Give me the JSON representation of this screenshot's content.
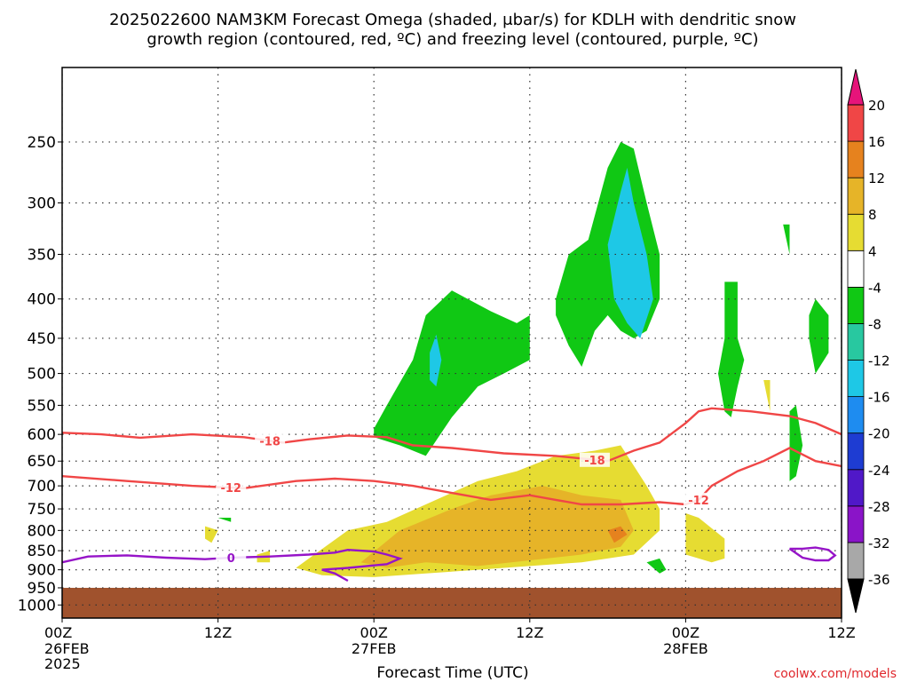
{
  "title": {
    "line1": "2025022600 NAM3KM Forecast Omega (shaded, μbar/s) for KDLH with dendritic snow",
    "line2": "growth region (contoured, red, ºC) and freezing level (contoured, purple, ºC)"
  },
  "credit": "coolwx.com/models",
  "chart_data": {
    "type": "contour-time-height",
    "xlabel": "Forecast Time (UTC)",
    "x_range_hours": [
      0,
      60
    ],
    "x_ticks": [
      {
        "hour": 0,
        "label": "00Z",
        "sub1": "26FEB",
        "sub2": "2025"
      },
      {
        "hour": 12,
        "label": "12Z",
        "sub1": "",
        "sub2": ""
      },
      {
        "hour": 24,
        "label": "00Z",
        "sub1": "27FEB",
        "sub2": ""
      },
      {
        "hour": 36,
        "label": "12Z",
        "sub1": "",
        "sub2": ""
      },
      {
        "hour": 48,
        "label": "00Z",
        "sub1": "28FEB",
        "sub2": ""
      },
      {
        "hour": 60,
        "label": "12Z",
        "sub1": "",
        "sub2": ""
      }
    ],
    "y_scale": "log-pressure",
    "y_range_hpa": [
      1000,
      200
    ],
    "y_ticks": [
      250,
      300,
      350,
      400,
      450,
      500,
      550,
      600,
      650,
      700,
      750,
      800,
      850,
      900,
      950,
      1000
    ],
    "grid": true,
    "terrain_surface_hpa": 950,
    "colorbar": {
      "levels": [
        -36,
        -32,
        -28,
        -24,
        -20,
        -16,
        -12,
        -8,
        -4,
        4,
        8,
        12,
        16,
        20
      ],
      "colors": [
        "#a8a8a8",
        "#8a14c8",
        "#5018c8",
        "#1e3cd2",
        "#1e8cf0",
        "#1ec8e6",
        "#28c8a0",
        "#10c814",
        "#ffffff",
        "#e6dc32",
        "#e6b428",
        "#e6821e",
        "#f04646",
        "#e6147a"
      ],
      "under_color": "#000000",
      "over_color": "#e6147a"
    },
    "isotherms": [
      {
        "value": -18,
        "label": "-18",
        "color": "#f04646",
        "points": [
          [
            0,
            597
          ],
          [
            3,
            600
          ],
          [
            6,
            606
          ],
          [
            10,
            600
          ],
          [
            14,
            605
          ],
          [
            17,
            615
          ],
          [
            19,
            609
          ],
          [
            22,
            602
          ],
          [
            25,
            605
          ],
          [
            27,
            620
          ],
          [
            30,
            625
          ],
          [
            34,
            635
          ],
          [
            38,
            640
          ],
          [
            40,
            645
          ],
          [
            42,
            650
          ],
          [
            44,
            630
          ],
          [
            46,
            615
          ],
          [
            48,
            580
          ],
          [
            49,
            560
          ],
          [
            50,
            555
          ],
          [
            53,
            560
          ],
          [
            56,
            568
          ],
          [
            58,
            580
          ],
          [
            60,
            600
          ]
        ],
        "label_hours": [
          16,
          41
        ]
      },
      {
        "value": -12,
        "label": "-12",
        "color": "#f04646",
        "points": [
          [
            0,
            680
          ],
          [
            5,
            690
          ],
          [
            10,
            700
          ],
          [
            14,
            705
          ],
          [
            18,
            690
          ],
          [
            21,
            685
          ],
          [
            24,
            690
          ],
          [
            27,
            700
          ],
          [
            30,
            715
          ],
          [
            33,
            730
          ],
          [
            36,
            720
          ],
          [
            38,
            730
          ],
          [
            40,
            740
          ],
          [
            43,
            740
          ],
          [
            46,
            735
          ],
          [
            48,
            740
          ],
          [
            49,
            730
          ],
          [
            50,
            700
          ],
          [
            52,
            670
          ],
          [
            54,
            650
          ],
          [
            56,
            625
          ],
          [
            58,
            650
          ],
          [
            60,
            660
          ]
        ],
        "label_hours": [
          13,
          49
        ]
      },
      {
        "value": 0,
        "label": "0",
        "color": "#9614c8",
        "points": [
          [
            0,
            880
          ],
          [
            2,
            865
          ],
          [
            5,
            862
          ],
          [
            8,
            868
          ],
          [
            11,
            872
          ],
          [
            13,
            868
          ],
          [
            16,
            865
          ],
          [
            19,
            860
          ],
          [
            21,
            855
          ],
          [
            22,
            848
          ],
          [
            24,
            852
          ],
          [
            25,
            860
          ],
          [
            26,
            870
          ],
          [
            25,
            885
          ],
          [
            22,
            895
          ],
          [
            20,
            900
          ],
          [
            21,
            910
          ],
          [
            22,
            930
          ]
        ],
        "label_hours": [
          13
        ]
      },
      {
        "value": 0,
        "label": "",
        "color": "#9614c8",
        "points": [
          [
            56,
            845
          ],
          [
            57,
            868
          ],
          [
            58,
            875
          ],
          [
            59,
            875
          ],
          [
            59.5,
            862
          ],
          [
            59,
            848
          ],
          [
            58,
            842
          ],
          [
            57,
            845
          ],
          [
            56,
            845
          ]
        ],
        "label_hours": []
      }
    ],
    "omega_regions": [
      {
        "value": -6,
        "pts": [
          [
            24,
            590
          ],
          [
            25,
            550
          ],
          [
            27,
            480
          ],
          [
            28,
            420
          ],
          [
            30,
            390
          ],
          [
            33,
            415
          ],
          [
            35,
            430
          ],
          [
            36,
            420
          ],
          [
            36,
            480
          ],
          [
            34,
            500
          ],
          [
            32,
            520
          ],
          [
            30,
            570
          ],
          [
            28,
            640
          ],
          [
            26,
            620
          ],
          [
            24,
            605
          ]
        ]
      },
      {
        "value": -14,
        "pts": [
          [
            28.3,
            470
          ],
          [
            28.8,
            445
          ],
          [
            29.2,
            480
          ],
          [
            28.8,
            520
          ],
          [
            28.3,
            510
          ]
        ]
      },
      {
        "value": -6,
        "pts": [
          [
            38,
            400
          ],
          [
            39,
            350
          ],
          [
            40.5,
            335
          ],
          [
            42,
            270
          ],
          [
            43,
            250
          ],
          [
            44,
            255
          ],
          [
            45,
            300
          ],
          [
            46,
            350
          ],
          [
            46,
            400
          ],
          [
            45,
            440
          ],
          [
            44,
            450
          ],
          [
            43,
            440
          ],
          [
            42,
            420
          ],
          [
            41,
            440
          ],
          [
            40,
            490
          ],
          [
            39,
            460
          ],
          [
            38,
            420
          ]
        ]
      },
      {
        "value": -14,
        "pts": [
          [
            42,
            340
          ],
          [
            43,
            290
          ],
          [
            43.5,
            270
          ],
          [
            44,
            300
          ],
          [
            45,
            350
          ],
          [
            45.5,
            400
          ],
          [
            44.5,
            450
          ],
          [
            43.5,
            430
          ],
          [
            42.5,
            400
          ]
        ]
      },
      {
        "value": -6,
        "pts": [
          [
            51,
            380
          ],
          [
            52,
            380
          ],
          [
            52,
            450
          ],
          [
            52.5,
            480
          ],
          [
            52,
            520
          ],
          [
            51.5,
            570
          ],
          [
            51,
            560
          ],
          [
            50.5,
            500
          ],
          [
            51,
            450
          ]
        ]
      },
      {
        "value": -6,
        "pts": [
          [
            55.5,
            320
          ],
          [
            56,
            320
          ],
          [
            56,
            350
          ]
        ]
      },
      {
        "value": -6,
        "pts": [
          [
            57.5,
            420
          ],
          [
            58,
            400
          ],
          [
            59,
            420
          ],
          [
            59,
            470
          ],
          [
            58,
            500
          ],
          [
            57.5,
            450
          ]
        ]
      },
      {
        "value": -6,
        "pts": [
          [
            56,
            560
          ],
          [
            56.5,
            550
          ],
          [
            57,
            620
          ],
          [
            56.5,
            680
          ],
          [
            56,
            690
          ]
        ]
      },
      {
        "value": -6,
        "pts": [
          [
            12,
            770
          ],
          [
            13,
            770
          ],
          [
            13,
            780
          ]
        ]
      },
      {
        "value": -6,
        "pts": [
          [
            45,
            880
          ],
          [
            46,
            870
          ],
          [
            46.5,
            900
          ],
          [
            46,
            910
          ]
        ]
      },
      {
        "value": 6,
        "pts": [
          [
            18,
            895
          ],
          [
            19,
            870
          ],
          [
            22,
            800
          ],
          [
            25,
            780
          ],
          [
            28,
            740
          ],
          [
            32,
            690
          ],
          [
            35,
            670
          ],
          [
            38,
            640
          ],
          [
            41,
            630
          ],
          [
            43,
            620
          ],
          [
            45,
            700
          ],
          [
            46,
            750
          ],
          [
            46,
            800
          ],
          [
            44,
            860
          ],
          [
            40,
            880
          ],
          [
            36,
            890
          ],
          [
            32,
            900
          ],
          [
            28,
            910
          ],
          [
            24,
            920
          ],
          [
            20,
            915
          ]
        ]
      },
      {
        "value": 10,
        "pts": [
          [
            23,
            880
          ],
          [
            26,
            800
          ],
          [
            30,
            750
          ],
          [
            33,
            720
          ],
          [
            37,
            700
          ],
          [
            40,
            720
          ],
          [
            43,
            730
          ],
          [
            44,
            800
          ],
          [
            43,
            840
          ],
          [
            40,
            860
          ],
          [
            36,
            875
          ],
          [
            32,
            890
          ],
          [
            28,
            880
          ],
          [
            25,
            895
          ]
        ]
      },
      {
        "value": 14,
        "pts": [
          [
            42,
            800
          ],
          [
            43,
            790
          ],
          [
            43.5,
            810
          ],
          [
            42.5,
            830
          ]
        ]
      },
      {
        "value": 6,
        "pts": [
          [
            48,
            760
          ],
          [
            49,
            770
          ],
          [
            51,
            820
          ],
          [
            51,
            870
          ],
          [
            50,
            880
          ],
          [
            48,
            860
          ]
        ]
      },
      {
        "value": 6,
        "pts": [
          [
            15,
            860
          ],
          [
            16,
            850
          ],
          [
            16,
            880
          ],
          [
            15,
            880
          ]
        ]
      },
      {
        "value": 6,
        "pts": [
          [
            11,
            790
          ],
          [
            12,
            800
          ],
          [
            11.5,
            830
          ],
          [
            11,
            820
          ]
        ]
      },
      {
        "value": 6,
        "pts": [
          [
            54,
            510
          ],
          [
            54.5,
            510
          ],
          [
            54.5,
            560
          ]
        ]
      }
    ]
  }
}
